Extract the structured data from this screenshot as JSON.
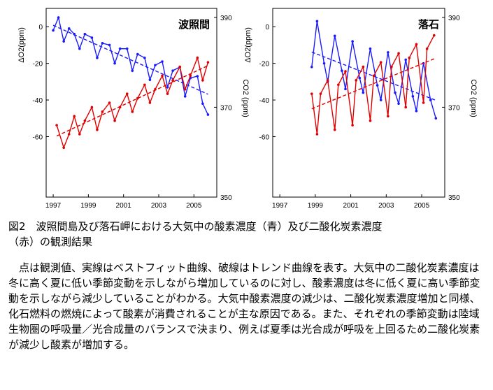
{
  "chart_data": [
    {
      "type": "scatter",
      "title": "波照間",
      "y_left_label": "ΔO2(ppm)",
      "y_right_label": "CO2 (ppm)",
      "x_ticks": [
        "1997",
        "1999",
        "2001",
        "2003",
        "2005"
      ],
      "y_left_ticks": [
        "0",
        "-20",
        "-40",
        "-60"
      ],
      "y_right_ticks": [
        "390",
        "370",
        "350"
      ],
      "xlim": [
        1996.6,
        2006.3
      ],
      "ylim_left": [
        -93,
        10
      ],
      "ylim_right": [
        350,
        392
      ],
      "series": [
        {
          "axis": "left",
          "color": "#1a1aff",
          "points": [
            [
              1997.0,
              -2
            ],
            [
              1997.3,
              5
            ],
            [
              1997.6,
              -8
            ],
            [
              1997.9,
              -1
            ],
            [
              1998.2,
              -4
            ],
            [
              1998.5,
              -12
            ],
            [
              1998.8,
              -4
            ],
            [
              1999.2,
              -6
            ],
            [
              1999.5,
              -17
            ],
            [
              1999.8,
              -9
            ],
            [
              2000.2,
              -10
            ],
            [
              2000.5,
              -20
            ],
            [
              2000.8,
              -12
            ],
            [
              2001.2,
              -12
            ],
            [
              2001.5,
              -24
            ],
            [
              2001.8,
              -15
            ],
            [
              2002.2,
              -17
            ],
            [
              2002.5,
              -29
            ],
            [
              2002.8,
              -21
            ],
            [
              2003.2,
              -19
            ],
            [
              2003.5,
              -33
            ],
            [
              2003.8,
              -24
            ],
            [
              2004.2,
              -22
            ],
            [
              2004.5,
              -38
            ],
            [
              2004.8,
              -28
            ],
            [
              2005.2,
              -27
            ],
            [
              2005.5,
              -42
            ],
            [
              2005.8,
              -48
            ]
          ]
        },
        {
          "axis": "right",
          "color": "#e00000",
          "points": [
            [
              1997.2,
              366
            ],
            [
              1997.6,
              361
            ],
            [
              1997.9,
              364
            ],
            [
              1998.2,
              368
            ],
            [
              1998.5,
              364
            ],
            [
              1998.8,
              367
            ],
            [
              1999.2,
              370
            ],
            [
              1999.5,
              365
            ],
            [
              1999.8,
              369
            ],
            [
              2000.2,
              371
            ],
            [
              2000.5,
              367
            ],
            [
              2000.8,
              370
            ],
            [
              2001.2,
              373
            ],
            [
              2001.5,
              369
            ],
            [
              2001.8,
              372
            ],
            [
              2002.2,
              375
            ],
            [
              2002.5,
              371
            ],
            [
              2002.8,
              374
            ],
            [
              2003.2,
              377
            ],
            [
              2003.5,
              373
            ],
            [
              2003.8,
              376
            ],
            [
              2004.2,
              379
            ],
            [
              2004.5,
              374
            ],
            [
              2004.8,
              377
            ],
            [
              2005.2,
              381
            ],
            [
              2005.5,
              376
            ],
            [
              2005.8,
              380
            ]
          ]
        }
      ]
    },
    {
      "type": "scatter",
      "title": "落石",
      "y_left_label": "ΔO2(ppm)",
      "y_right_label": "CO2 (ppm)",
      "x_ticks": [
        "1997",
        "1999",
        "2001",
        "2003",
        "2005"
      ],
      "y_left_ticks": [
        "0",
        "-20",
        "-40",
        "-60"
      ],
      "y_right_ticks": [
        "390",
        "370",
        "350"
      ],
      "xlim": [
        1996.6,
        2006.3
      ],
      "ylim_left": [
        -93,
        10
      ],
      "ylim_right": [
        350,
        392
      ],
      "series": [
        {
          "axis": "left",
          "color": "#1a1aff",
          "points": [
            [
              1998.8,
              -22
            ],
            [
              1999.1,
              3
            ],
            [
              1999.5,
              -20
            ],
            [
              1999.7,
              -30
            ],
            [
              2000.1,
              -5
            ],
            [
              2000.5,
              -24
            ],
            [
              2000.7,
              -34
            ],
            [
              2001.1,
              -8
            ],
            [
              2001.5,
              -28
            ],
            [
              2001.7,
              -36
            ],
            [
              2002.1,
              -12
            ],
            [
              2002.5,
              -32
            ],
            [
              2002.7,
              -40
            ],
            [
              2003.1,
              -14
            ],
            [
              2003.5,
              -36
            ],
            [
              2003.7,
              -42
            ],
            [
              2004.1,
              -18
            ],
            [
              2004.5,
              -38
            ],
            [
              2004.7,
              -46
            ],
            [
              2005.1,
              -20
            ],
            [
              2005.5,
              -40
            ],
            [
              2005.8,
              -50
            ]
          ]
        },
        {
          "axis": "right",
          "color": "#e00000",
          "points": [
            [
              1998.8,
              373
            ],
            [
              1999.1,
              364
            ],
            [
              1999.3,
              373
            ],
            [
              1999.7,
              376
            ],
            [
              2000.1,
              365
            ],
            [
              2000.3,
              375
            ],
            [
              2000.7,
              378
            ],
            [
              2001.1,
              366
            ],
            [
              2001.3,
              376
            ],
            [
              2001.7,
              379
            ],
            [
              2002.1,
              367
            ],
            [
              2002.3,
              377
            ],
            [
              2002.7,
              380
            ],
            [
              2003.1,
              368
            ],
            [
              2003.3,
              379
            ],
            [
              2003.7,
              382
            ],
            [
              2004.1,
              370
            ],
            [
              2004.3,
              381
            ],
            [
              2004.7,
              384
            ],
            [
              2005.1,
              371
            ],
            [
              2005.3,
              383
            ],
            [
              2005.7,
              386
            ]
          ]
        }
      ]
    }
  ],
  "caption": {
    "line1": "図2　波照間島及び落石岬における大気中の酸素濃度（青）及び二酸化炭素濃度",
    "line2": "（赤）の観測結果"
  },
  "body_text": "点は観測値、実線はベストフィット曲線、破線はトレンド曲線を表す。大気中の二酸化炭素濃度は冬に高く夏に低い季節変動を示しながら増加しているのに対し、酸素濃度は冬に低く夏に高い季節変動を示しながら減少していることがわかる。大気中酸素濃度の減少は、二酸化炭素濃度増加と同様、化石燃料の燃焼によって酸素が消費されることが主な原因である。また、それぞれの季節変動は陸域生物圏の呼吸量／光合成量のバランスで決まり、例えば夏季は光合成が呼吸を上回るため二酸化炭素が減少し酸素が増加する。"
}
